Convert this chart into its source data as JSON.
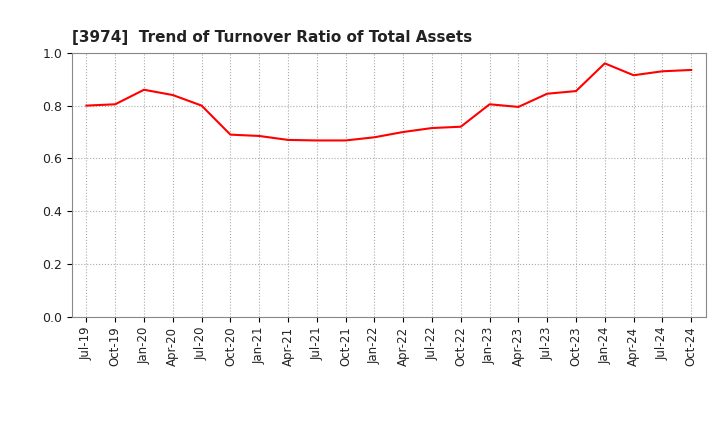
{
  "title": "[3974]  Trend of Turnover Ratio of Total Assets",
  "line_color": "#FF0000",
  "background_color": "#FFFFFF",
  "grid_color": "#AAAAAA",
  "ylim": [
    0.0,
    1.0
  ],
  "yticks": [
    0.0,
    0.2,
    0.4,
    0.6,
    0.8,
    1.0
  ],
  "x_labels": [
    "Jul-19",
    "Oct-19",
    "Jan-20",
    "Apr-20",
    "Jul-20",
    "Oct-20",
    "Jan-21",
    "Apr-21",
    "Jul-21",
    "Oct-21",
    "Jan-22",
    "Apr-22",
    "Jul-22",
    "Oct-22",
    "Jan-23",
    "Apr-23",
    "Jul-23",
    "Oct-23",
    "Jan-24",
    "Apr-24",
    "Jul-24",
    "Oct-24"
  ],
  "values": [
    0.8,
    0.805,
    0.86,
    0.84,
    0.8,
    0.69,
    0.685,
    0.67,
    0.668,
    0.668,
    0.68,
    0.7,
    0.715,
    0.72,
    0.805,
    0.795,
    0.845,
    0.855,
    0.96,
    0.915,
    0.93,
    0.935
  ]
}
